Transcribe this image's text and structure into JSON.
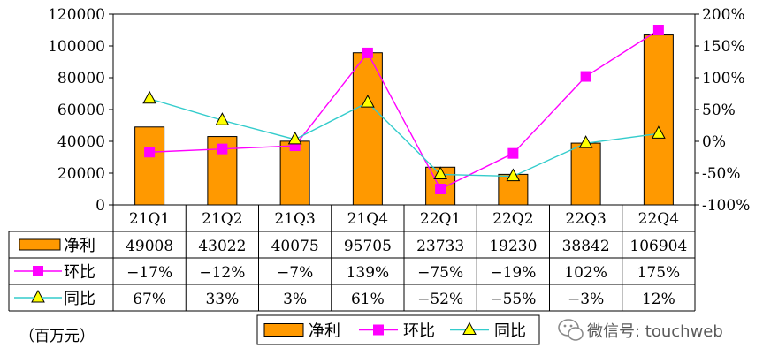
{
  "chart_data": {
    "type": "bar",
    "categories": [
      "21Q1",
      "21Q2",
      "21Q3",
      "21Q4",
      "22Q1",
      "22Q2",
      "22Q3",
      "22Q4"
    ],
    "series": [
      {
        "name": "净利",
        "type": "bar",
        "axis": "left",
        "color": "#ff9900",
        "values": [
          49008,
          43022,
          40075,
          95705,
          23733,
          19230,
          38842,
          106904
        ]
      },
      {
        "name": "环比",
        "type": "line",
        "axis": "right",
        "color": "#ff00ff",
        "marker": "square",
        "values": [
          -17,
          -12,
          -7,
          139,
          -75,
          -19,
          102,
          175
        ]
      },
      {
        "name": "同比",
        "type": "line",
        "axis": "right",
        "color": "#33cccc",
        "marker": "triangle",
        "values": [
          67,
          33,
          3,
          61,
          -52,
          -55,
          -3,
          12
        ]
      }
    ],
    "ylim": [
      0,
      120000
    ],
    "yticks": [
      "0",
      "20000",
      "40000",
      "60000",
      "80000",
      "100000",
      "120000"
    ],
    "y2lim": [
      -100,
      200
    ],
    "y2ticks": [
      "-100%",
      "-50%",
      "0%",
      "50%",
      "100%",
      "150%",
      "200%"
    ],
    "table_rows": [
      {
        "label": "净利",
        "cells": [
          "49008",
          "43022",
          "40075",
          "95705",
          "23733",
          "19230",
          "38842",
          "106904"
        ]
      },
      {
        "label": "环比",
        "cells": [
          "−17%",
          "−12%",
          "−7%",
          "139%",
          "−75%",
          "−19%",
          "102%",
          "175%"
        ]
      },
      {
        "label": "同比",
        "cells": [
          "67%",
          "33%",
          "3%",
          "61%",
          "−52%",
          "−55%",
          "−3%",
          "12%"
        ]
      }
    ],
    "legend": {
      "placement": "bottom-center",
      "items": [
        "净利",
        "环比",
        "同比"
      ]
    },
    "grid": false
  },
  "unit_note": "（百万元）",
  "watermark": {
    "text": "微信号: touchweb",
    "icon": "wechat-icon"
  }
}
